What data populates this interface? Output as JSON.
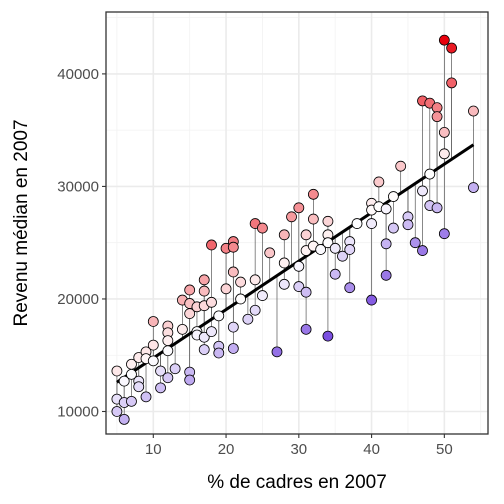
{
  "chart_data": {
    "type": "scatter",
    "xlabel": "% de cadres en 2007",
    "ylabel": "Revenu médian en 2007",
    "xlim": [
      3.5,
      56
    ],
    "ylim": [
      8000,
      45500
    ],
    "x_ticks": [
      10,
      20,
      30,
      40,
      50
    ],
    "y_ticks": [
      10000,
      20000,
      30000,
      40000
    ],
    "x_tick_labels": [
      "10",
      "20",
      "30",
      "40",
      "50"
    ],
    "y_tick_labels": [
      "10000",
      "20000",
      "30000",
      "40000"
    ],
    "grid": true,
    "legend": "none",
    "regression_line": {
      "x": [
        5,
        54
      ],
      "y": [
        12600,
        33700
      ]
    },
    "residual_segments": true,
    "colors": {
      "high": "#e8000b",
      "mid": "#ffffff",
      "low": "#7b4fe0",
      "line": "#000000",
      "segment": "#555555"
    },
    "points": [
      {
        "x": 5,
        "y": 13600
      },
      {
        "x": 5,
        "y": 11100
      },
      {
        "x": 5,
        "y": 10000
      },
      {
        "x": 6,
        "y": 12700
      },
      {
        "x": 6,
        "y": 10800
      },
      {
        "x": 6,
        "y": 9300
      },
      {
        "x": 7,
        "y": 14200
      },
      {
        "x": 7,
        "y": 13300
      },
      {
        "x": 7,
        "y": 10900
      },
      {
        "x": 8,
        "y": 14800
      },
      {
        "x": 8,
        "y": 12700
      },
      {
        "x": 8,
        "y": 12200
      },
      {
        "x": 9,
        "y": 15300
      },
      {
        "x": 9,
        "y": 14700
      },
      {
        "x": 9,
        "y": 11300
      },
      {
        "x": 10,
        "y": 18000
      },
      {
        "x": 10,
        "y": 15900
      },
      {
        "x": 10,
        "y": 14500
      },
      {
        "x": 11,
        "y": 13600
      },
      {
        "x": 11,
        "y": 12100
      },
      {
        "x": 12,
        "y": 17600
      },
      {
        "x": 12,
        "y": 17000
      },
      {
        "x": 12,
        "y": 16300
      },
      {
        "x": 12,
        "y": 15400
      },
      {
        "x": 12,
        "y": 13000
      },
      {
        "x": 13,
        "y": 13800
      },
      {
        "x": 14,
        "y": 19900
      },
      {
        "x": 14,
        "y": 17300
      },
      {
        "x": 15,
        "y": 20800
      },
      {
        "x": 15,
        "y": 19600
      },
      {
        "x": 15,
        "y": 18700
      },
      {
        "x": 15,
        "y": 13500
      },
      {
        "x": 15,
        "y": 12800
      },
      {
        "x": 16,
        "y": 19300
      },
      {
        "x": 16,
        "y": 17100
      },
      {
        "x": 16,
        "y": 16800
      },
      {
        "x": 17,
        "y": 21700
      },
      {
        "x": 17,
        "y": 20700
      },
      {
        "x": 17,
        "y": 19400
      },
      {
        "x": 17,
        "y": 16600
      },
      {
        "x": 17,
        "y": 15500
      },
      {
        "x": 18,
        "y": 24800
      },
      {
        "x": 18,
        "y": 19700
      },
      {
        "x": 18,
        "y": 17100
      },
      {
        "x": 19,
        "y": 18500
      },
      {
        "x": 19,
        "y": 15800
      },
      {
        "x": 19,
        "y": 15200
      },
      {
        "x": 20,
        "y": 24500
      },
      {
        "x": 20,
        "y": 20900
      },
      {
        "x": 21,
        "y": 25100
      },
      {
        "x": 21,
        "y": 24600
      },
      {
        "x": 21,
        "y": 22400
      },
      {
        "x": 21,
        "y": 17500
      },
      {
        "x": 21,
        "y": 15600
      },
      {
        "x": 22,
        "y": 21500
      },
      {
        "x": 22,
        "y": 20000
      },
      {
        "x": 23,
        "y": 18200
      },
      {
        "x": 24,
        "y": 26700
      },
      {
        "x": 24,
        "y": 21700
      },
      {
        "x": 24,
        "y": 19000
      },
      {
        "x": 25,
        "y": 26300
      },
      {
        "x": 25,
        "y": 20300
      },
      {
        "x": 26,
        "y": 24100
      },
      {
        "x": 27,
        "y": 15300
      },
      {
        "x": 28,
        "y": 25700
      },
      {
        "x": 28,
        "y": 23200
      },
      {
        "x": 28,
        "y": 21300
      },
      {
        "x": 29,
        "y": 27300
      },
      {
        "x": 30,
        "y": 28100
      },
      {
        "x": 30,
        "y": 22900
      },
      {
        "x": 30,
        "y": 21100
      },
      {
        "x": 31,
        "y": 25700
      },
      {
        "x": 31,
        "y": 24300
      },
      {
        "x": 31,
        "y": 20600
      },
      {
        "x": 31,
        "y": 17300
      },
      {
        "x": 32,
        "y": 29300
      },
      {
        "x": 32,
        "y": 27100
      },
      {
        "x": 32,
        "y": 24700
      },
      {
        "x": 33,
        "y": 24400
      },
      {
        "x": 34,
        "y": 26900
      },
      {
        "x": 34,
        "y": 25700
      },
      {
        "x": 34,
        "y": 25000
      },
      {
        "x": 34,
        "y": 16700
      },
      {
        "x": 35,
        "y": 24500
      },
      {
        "x": 35,
        "y": 22200
      },
      {
        "x": 36,
        "y": 23800
      },
      {
        "x": 37,
        "y": 25100
      },
      {
        "x": 37,
        "y": 24400
      },
      {
        "x": 37,
        "y": 21000
      },
      {
        "x": 38,
        "y": 26700
      },
      {
        "x": 40,
        "y": 28500
      },
      {
        "x": 40,
        "y": 27900
      },
      {
        "x": 40,
        "y": 26700
      },
      {
        "x": 40,
        "y": 19900
      },
      {
        "x": 41,
        "y": 30400
      },
      {
        "x": 41,
        "y": 28200
      },
      {
        "x": 42,
        "y": 28000
      },
      {
        "x": 42,
        "y": 24900
      },
      {
        "x": 42,
        "y": 22100
      },
      {
        "x": 43,
        "y": 29100
      },
      {
        "x": 43,
        "y": 26300
      },
      {
        "x": 44,
        "y": 31800
      },
      {
        "x": 45,
        "y": 27300
      },
      {
        "x": 45,
        "y": 26600
      },
      {
        "x": 46,
        "y": 25000
      },
      {
        "x": 47,
        "y": 37600
      },
      {
        "x": 47,
        "y": 29600
      },
      {
        "x": 47,
        "y": 24300
      },
      {
        "x": 48,
        "y": 37400
      },
      {
        "x": 48,
        "y": 31100
      },
      {
        "x": 48,
        "y": 28300
      },
      {
        "x": 49,
        "y": 37000
      },
      {
        "x": 49,
        "y": 36200
      },
      {
        "x": 49,
        "y": 28100
      },
      {
        "x": 50,
        "y": 43000
      },
      {
        "x": 50,
        "y": 34800
      },
      {
        "x": 50,
        "y": 32900
      },
      {
        "x": 50,
        "y": 25800
      },
      {
        "x": 51,
        "y": 42300
      },
      {
        "x": 51,
        "y": 39200
      },
      {
        "x": 54,
        "y": 36700
      },
      {
        "x": 54,
        "y": 29900
      }
    ]
  }
}
